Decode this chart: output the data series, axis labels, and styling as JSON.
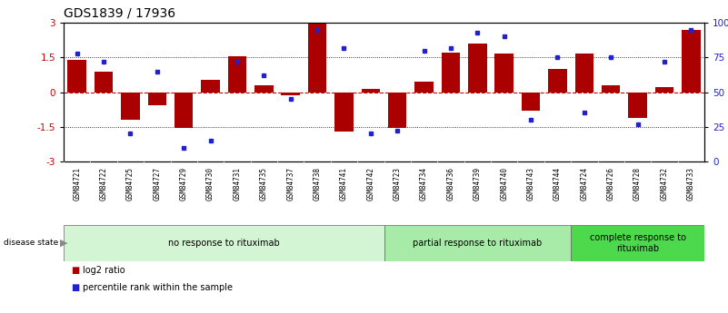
{
  "title": "GDS1839 / 17936",
  "samples": [
    "GSM84721",
    "GSM84722",
    "GSM84725",
    "GSM84727",
    "GSM84729",
    "GSM84730",
    "GSM84731",
    "GSM84735",
    "GSM84737",
    "GSM84738",
    "GSM84741",
    "GSM84742",
    "GSM84723",
    "GSM84734",
    "GSM84736",
    "GSM84739",
    "GSM84740",
    "GSM84743",
    "GSM84744",
    "GSM84724",
    "GSM84726",
    "GSM84728",
    "GSM84732",
    "GSM84733"
  ],
  "log2_ratio": [
    1.4,
    0.9,
    -1.2,
    -0.55,
    -1.55,
    0.52,
    1.55,
    0.3,
    -0.12,
    3.0,
    -1.7,
    0.15,
    -1.55,
    0.45,
    1.7,
    2.1,
    1.65,
    -0.8,
    1.0,
    1.65,
    0.3,
    -1.1,
    0.2,
    2.7
  ],
  "percentile": [
    78,
    72,
    20,
    65,
    10,
    15,
    72,
    62,
    45,
    95,
    82,
    20,
    22,
    80,
    82,
    93,
    90,
    30,
    75,
    35,
    75,
    27,
    72,
    95
  ],
  "groups": [
    {
      "label": "no response to rituximab",
      "start": 0,
      "end": 12,
      "color": "#d4f5d4"
    },
    {
      "label": "partial response to rituximab",
      "start": 12,
      "end": 19,
      "color": "#a8eba8"
    },
    {
      "label": "complete response to\nrituximab",
      "start": 19,
      "end": 24,
      "color": "#4cd94c"
    }
  ],
  "bar_color": "#aa0000",
  "dot_color": "#2222cc",
  "ylim_left": [
    -3,
    3
  ],
  "yticks_left": [
    -3,
    -1.5,
    0,
    1.5,
    3
  ],
  "yticks_right": [
    0,
    25,
    50,
    75,
    100
  ],
  "label_bg_color": "#c8c8c8",
  "title_fontsize": 10,
  "tick_fontsize": 7.5,
  "sample_fontsize": 5.5,
  "group_fontsize": 7.0,
  "legend_fontsize": 7.0
}
